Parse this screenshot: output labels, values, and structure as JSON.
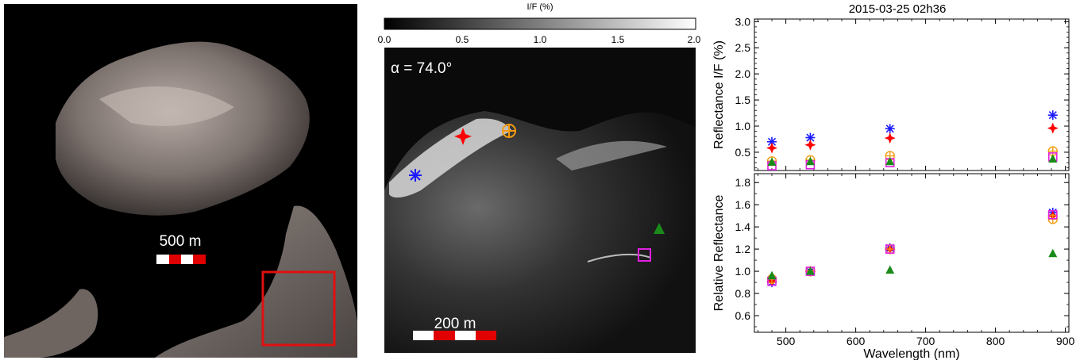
{
  "left_panel": {
    "scale_label": "500 m"
  },
  "middle_panel": {
    "colorbar": {
      "title": "I/F (%)",
      "ticks": [
        "0.0",
        "0.5",
        "1.0",
        "1.5",
        "2.0"
      ],
      "range": [
        0.0,
        2.0
      ]
    },
    "phase_angle_label": "α = 74.0°",
    "scale_label": "200 m",
    "markers": [
      {
        "symbol": "asterisk",
        "color": "#1a1aff"
      },
      {
        "symbol": "four-point-star",
        "color": "#ff0000"
      },
      {
        "symbol": "circle-plus",
        "color": "#f39c12"
      },
      {
        "symbol": "triangle",
        "color": "#1a8a1a"
      },
      {
        "symbol": "square",
        "color": "#e020e0"
      }
    ]
  },
  "chart_data": [
    {
      "type": "scatter",
      "title": "2015-03-25 02h36",
      "xlabel": "",
      "ylabel": "Reflectance I/F (%)",
      "xlim": [
        455,
        905
      ],
      "ylim": [
        0.15,
        3.05
      ],
      "yticks": [
        "0.5",
        "1.0",
        "1.5",
        "2.0",
        "2.5",
        "3.0"
      ],
      "grid": false,
      "series": [
        {
          "symbol": "asterisk",
          "color": "#1a1aff",
          "x": [
            480,
            535,
            649,
            882
          ],
          "y": [
            0.7,
            0.78,
            0.95,
            1.21
          ]
        },
        {
          "symbol": "four-point-star",
          "color": "#ff0000",
          "x": [
            480,
            535,
            649,
            882
          ],
          "y": [
            0.58,
            0.64,
            0.77,
            0.96
          ]
        },
        {
          "symbol": "circle-plus",
          "color": "#f39c12",
          "x": [
            480,
            535,
            649,
            882
          ],
          "y": [
            0.33,
            0.35,
            0.43,
            0.52
          ]
        },
        {
          "symbol": "square",
          "color": "#e020e0",
          "x": [
            480,
            535,
            649,
            882
          ],
          "y": [
            0.24,
            0.26,
            0.3,
            0.41
          ]
        },
        {
          "symbol": "triangle",
          "color": "#1a8a1a",
          "x": [
            480,
            535,
            649,
            882
          ],
          "y": [
            0.31,
            0.32,
            0.32,
            0.37
          ]
        }
      ]
    },
    {
      "type": "scatter",
      "xlabel": "Wavelength (nm)",
      "ylabel": "Relative Reflectance",
      "xlim": [
        455,
        905
      ],
      "ylim": [
        0.45,
        1.88
      ],
      "xticks": [
        "500",
        "600",
        "700",
        "800",
        "900"
      ],
      "yticks": [
        "0.6",
        "0.8",
        "1.0",
        "1.2",
        "1.4",
        "1.6",
        "1.8"
      ],
      "grid": false,
      "series": [
        {
          "symbol": "asterisk",
          "color": "#1a1aff",
          "x": [
            480,
            535,
            649,
            882
          ],
          "y": [
            0.9,
            1.0,
            1.21,
            1.53
          ]
        },
        {
          "symbol": "four-point-star",
          "color": "#ff0000",
          "x": [
            480,
            535,
            649,
            882
          ],
          "y": [
            0.91,
            1.0,
            1.2,
            1.5
          ]
        },
        {
          "symbol": "circle-plus",
          "color": "#f39c12",
          "x": [
            480,
            535,
            649,
            882
          ],
          "y": [
            0.93,
            1.0,
            1.2,
            1.47
          ]
        },
        {
          "symbol": "square",
          "color": "#e020e0",
          "x": [
            480,
            535,
            649,
            882
          ],
          "y": [
            0.91,
            1.0,
            1.2,
            1.51
          ]
        },
        {
          "symbol": "triangle",
          "color": "#1a8a1a",
          "x": [
            480,
            535,
            649,
            882
          ],
          "y": [
            0.96,
            1.0,
            1.01,
            1.16
          ]
        }
      ]
    }
  ]
}
